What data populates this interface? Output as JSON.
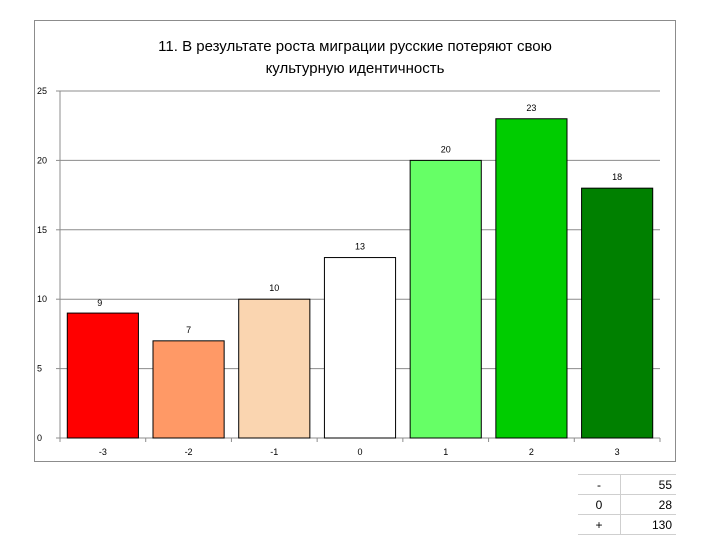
{
  "chart_data": {
    "type": "bar",
    "title": "11. В результате роста миграции русские потеряют свою культурную идентичность",
    "title_lines": [
      "11. В результате роста миграции русские потеряют свою",
      "культурную идентичность"
    ],
    "categories": [
      "-3",
      "-2",
      "-1",
      "0",
      "1",
      "2",
      "3"
    ],
    "values": [
      9,
      7,
      10,
      13,
      20,
      23,
      18
    ],
    "bar_colors": [
      "#ff0000",
      "#ff9966",
      "#fad5b0",
      "#ffffff",
      "#66ff66",
      "#00cc00",
      "#008000"
    ],
    "ylim": [
      0,
      25
    ],
    "yticks": [
      0,
      5,
      10,
      15,
      20,
      25
    ],
    "grid": true,
    "legend": "none"
  },
  "summary_table": [
    {
      "key": "-",
      "value": "55"
    },
    {
      "key": "0",
      "value": "28"
    },
    {
      "key": "+",
      "value": "130"
    }
  ]
}
